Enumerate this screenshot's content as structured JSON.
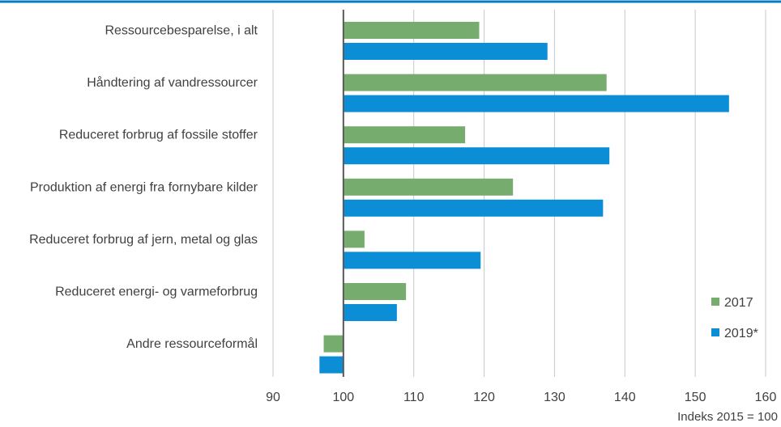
{
  "colors": {
    "top_rule": "#0a7bbf",
    "gridline": "#c8c8c8",
    "baseline": "#595959",
    "text": "#404040"
  },
  "chart_data": {
    "type": "bar",
    "orientation": "horizontal",
    "categories": [
      "Ressourcebesparelse, i alt",
      "Håndtering af vandressourcer",
      "Reduceret forbrug af fossile stoffer",
      "Produktion af energi fra fornybare kilder",
      "Reduceret forbrug af jern, metal og glas",
      "Reduceret energi- og varmeforbrug",
      "Andre ressourceformål"
    ],
    "series": [
      {
        "name": "2017",
        "color": "#77ac6f",
        "values": [
          119.3,
          137.4,
          117.3,
          124.1,
          103.0,
          108.9,
          97.2
        ]
      },
      {
        "name": "2019*",
        "color": "#0b8ed6",
        "values": [
          129.0,
          154.8,
          137.8,
          136.9,
          119.5,
          107.6,
          96.6
        ]
      }
    ],
    "baseline": 100,
    "xlim": [
      90,
      160
    ],
    "xticks": [
      "90",
      "100",
      "110",
      "120",
      "130",
      "140",
      "150",
      "160"
    ],
    "xtick_values": [
      90,
      100,
      110,
      120,
      130,
      140,
      150,
      160
    ],
    "xlabel": "Indeks 2015 = 100",
    "grid": true,
    "legend_position": "bottom-right"
  }
}
